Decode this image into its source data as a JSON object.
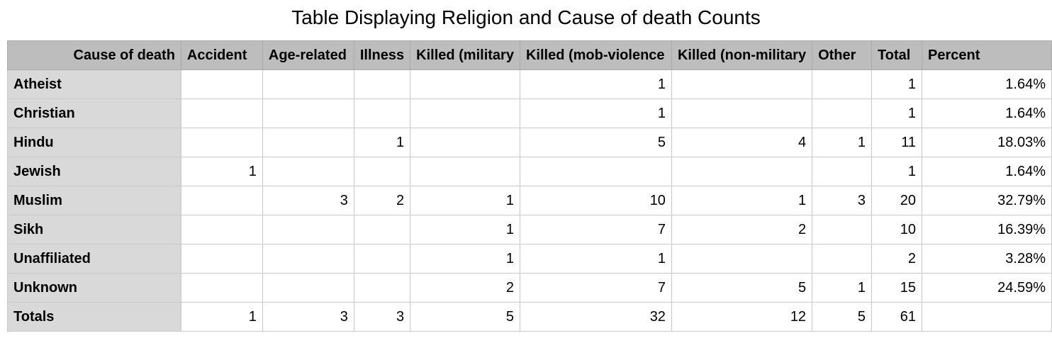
{
  "chart_data": {
    "type": "table",
    "title": "Table Displaying Religion and Cause of death Counts",
    "corner_label": "Cause of death",
    "columns": [
      "Accident",
      "Age-related",
      "Illness",
      "Killed (military",
      "Killed (mob-violence",
      "Killed (non-military",
      "Other",
      "Total",
      "Percent"
    ],
    "rows": [
      {
        "label": "Atheist",
        "cells": [
          "",
          "",
          "",
          "",
          "1",
          "",
          "",
          "1",
          "1.64%"
        ]
      },
      {
        "label": "Christian",
        "cells": [
          "",
          "",
          "",
          "",
          "1",
          "",
          "",
          "1",
          "1.64%"
        ]
      },
      {
        "label": "Hindu",
        "cells": [
          "",
          "",
          "1",
          "",
          "5",
          "4",
          "1",
          "11",
          "18.03%"
        ]
      },
      {
        "label": "Jewish",
        "cells": [
          "1",
          "",
          "",
          "",
          "",
          "",
          "",
          "1",
          "1.64%"
        ]
      },
      {
        "label": "Muslim",
        "cells": [
          "",
          "3",
          "2",
          "1",
          "10",
          "1",
          "3",
          "20",
          "32.79%"
        ]
      },
      {
        "label": "Sikh",
        "cells": [
          "",
          "",
          "",
          "1",
          "7",
          "2",
          "",
          "10",
          "16.39%"
        ]
      },
      {
        "label": "Unaffiliated",
        "cells": [
          "",
          "",
          "",
          "1",
          "1",
          "",
          "",
          "2",
          "3.28%"
        ]
      },
      {
        "label": "Unknown",
        "cells": [
          "",
          "",
          "",
          "2",
          "7",
          "5",
          "1",
          "15",
          "24.59%"
        ]
      },
      {
        "label": "Totals",
        "cells": [
          "1",
          "3",
          "3",
          "5",
          "32",
          "12",
          "5",
          "61",
          ""
        ]
      }
    ]
  }
}
